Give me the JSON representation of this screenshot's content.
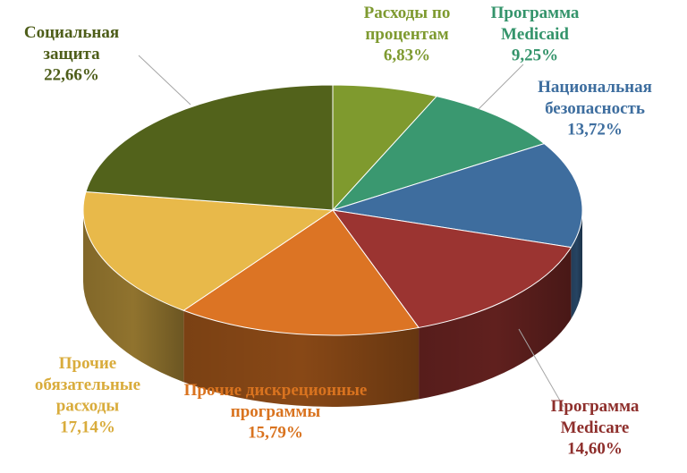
{
  "chart_data": {
    "type": "pie",
    "title": "",
    "slices": [
      {
        "label": "Расходы по процентам",
        "lines": [
          "Расходы по",
          "процентам"
        ],
        "value": 6.83,
        "value_text": "6,83%",
        "color": "#7F9A2E",
        "label_color": "#7E9A30"
      },
      {
        "label": "Программа Medicaid",
        "lines": [
          "Программа",
          "Medicaid"
        ],
        "value": 9.25,
        "value_text": "9,25%",
        "color": "#3A9870",
        "label_color": "#34946B"
      },
      {
        "label": "Национальная безопасность",
        "lines": [
          "Национальная",
          "безопасность"
        ],
        "value": 13.72,
        "value_text": "13,72%",
        "color": "#3E6D9E",
        "label_color": "#3E6E9F"
      },
      {
        "label": "Программа Medicare",
        "lines": [
          "Программа",
          "Medicare"
        ],
        "value": 14.6,
        "value_text": "14,60%",
        "color": "#9B3431",
        "label_color": "#8E2F2C"
      },
      {
        "label": "Прочие дискреционные программы",
        "lines": [
          "Прочие дискреционные",
          "программы"
        ],
        "value": 15.79,
        "value_text": "15,79%",
        "color": "#DC7424",
        "label_color": "#D9731F"
      },
      {
        "label": "Прочие обязательные расходы",
        "lines": [
          "Прочие",
          "обязательные",
          "расходы"
        ],
        "value": 17.14,
        "value_text": "17,14%",
        "color": "#E8B94A",
        "label_color": "#D9AC3C"
      },
      {
        "label": "Социальная защита",
        "lines": [
          "Социальная",
          "защита"
        ],
        "value": 22.66,
        "value_text": "22,66%",
        "color": "#52621B",
        "label_color": "#4E5E1A"
      }
    ]
  }
}
